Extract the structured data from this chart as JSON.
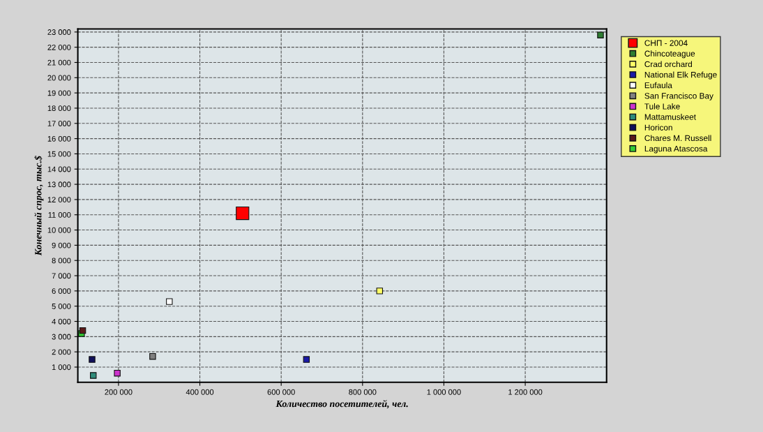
{
  "chart_data": {
    "type": "scatter",
    "xlabel": "Количество посетителей, чел.",
    "ylabel": "Конечный спрос, тыс.$",
    "xlim": [
      100000,
      1400000
    ],
    "ylim": [
      0,
      23200
    ],
    "xticks": [
      {
        "value": 200000,
        "label": "200 000"
      },
      {
        "value": 400000,
        "label": "400 000"
      },
      {
        "value": 600000,
        "label": "600 000"
      },
      {
        "value": 800000,
        "label": "800 000"
      },
      {
        "value": 1000000,
        "label": "1 000 000"
      },
      {
        "value": 1200000,
        "label": "1 200 000"
      }
    ],
    "yticks": [
      {
        "value": 1000,
        "label": "1 000"
      },
      {
        "value": 2000,
        "label": "2 000"
      },
      {
        "value": 3000,
        "label": "3 000"
      },
      {
        "value": 4000,
        "label": "4 000"
      },
      {
        "value": 5000,
        "label": "5 000"
      },
      {
        "value": 6000,
        "label": "6 000"
      },
      {
        "value": 7000,
        "label": "7 000"
      },
      {
        "value": 8000,
        "label": "8 000"
      },
      {
        "value": 9000,
        "label": "9 000"
      },
      {
        "value": 10000,
        "label": "10 000"
      },
      {
        "value": 11000,
        "label": "11 000"
      },
      {
        "value": 12000,
        "label": "12 000"
      },
      {
        "value": 13000,
        "label": "13 000"
      },
      {
        "value": 14000,
        "label": "14 000"
      },
      {
        "value": 15000,
        "label": "15 000"
      },
      {
        "value": 16000,
        "label": "16 000"
      },
      {
        "value": 17000,
        "label": "17 000"
      },
      {
        "value": 18000,
        "label": "18 000"
      },
      {
        "value": 19000,
        "label": "19 000"
      },
      {
        "value": 20000,
        "label": "20 000"
      },
      {
        "value": 21000,
        "label": "21 000"
      },
      {
        "value": 22000,
        "label": "22 000"
      },
      {
        "value": 23000,
        "label": "23 000"
      }
    ],
    "grid": true,
    "legend": "right",
    "marker": "square",
    "series": [
      {
        "name": "СНП - 2004",
        "color": "#ff0000",
        "x": [
          505000
        ],
        "values": [
          11100
        ]
      },
      {
        "name": "Chincoteague",
        "color": "#2e7d32",
        "x": [
          1385000
        ],
        "values": [
          22800
        ]
      },
      {
        "name": "Crad orchard",
        "color": "#ffff66",
        "x": [
          842000
        ],
        "values": [
          6000
        ]
      },
      {
        "name": "National Elk Refuge",
        "color": "#1a1aa6",
        "x": [
          662000
        ],
        "values": [
          1500
        ]
      },
      {
        "name": "Eufaula",
        "color": "#ffffff",
        "x": [
          325000
        ],
        "values": [
          5300
        ]
      },
      {
        "name": "San Francisco Bay",
        "color": "#808080",
        "x": [
          284000
        ],
        "values": [
          1700
        ]
      },
      {
        "name": "Tule Lake",
        "color": "#cc33cc",
        "x": [
          197000
        ],
        "values": [
          600
        ]
      },
      {
        "name": "Mattamuskeet",
        "color": "#2e8b7a",
        "x": [
          138000
        ],
        "values": [
          450
        ]
      },
      {
        "name": "Horicon",
        "color": "#10105a",
        "x": [
          135000
        ],
        "values": [
          1500
        ]
      },
      {
        "name": "Chares M. Russell",
        "color": "#5a1a1a",
        "x": [
          112000
        ],
        "values": [
          3400
        ]
      },
      {
        "name": "Laguna Atascosa",
        "color": "#33cc33",
        "x": [
          109000
        ],
        "values": [
          3200
        ]
      }
    ]
  }
}
